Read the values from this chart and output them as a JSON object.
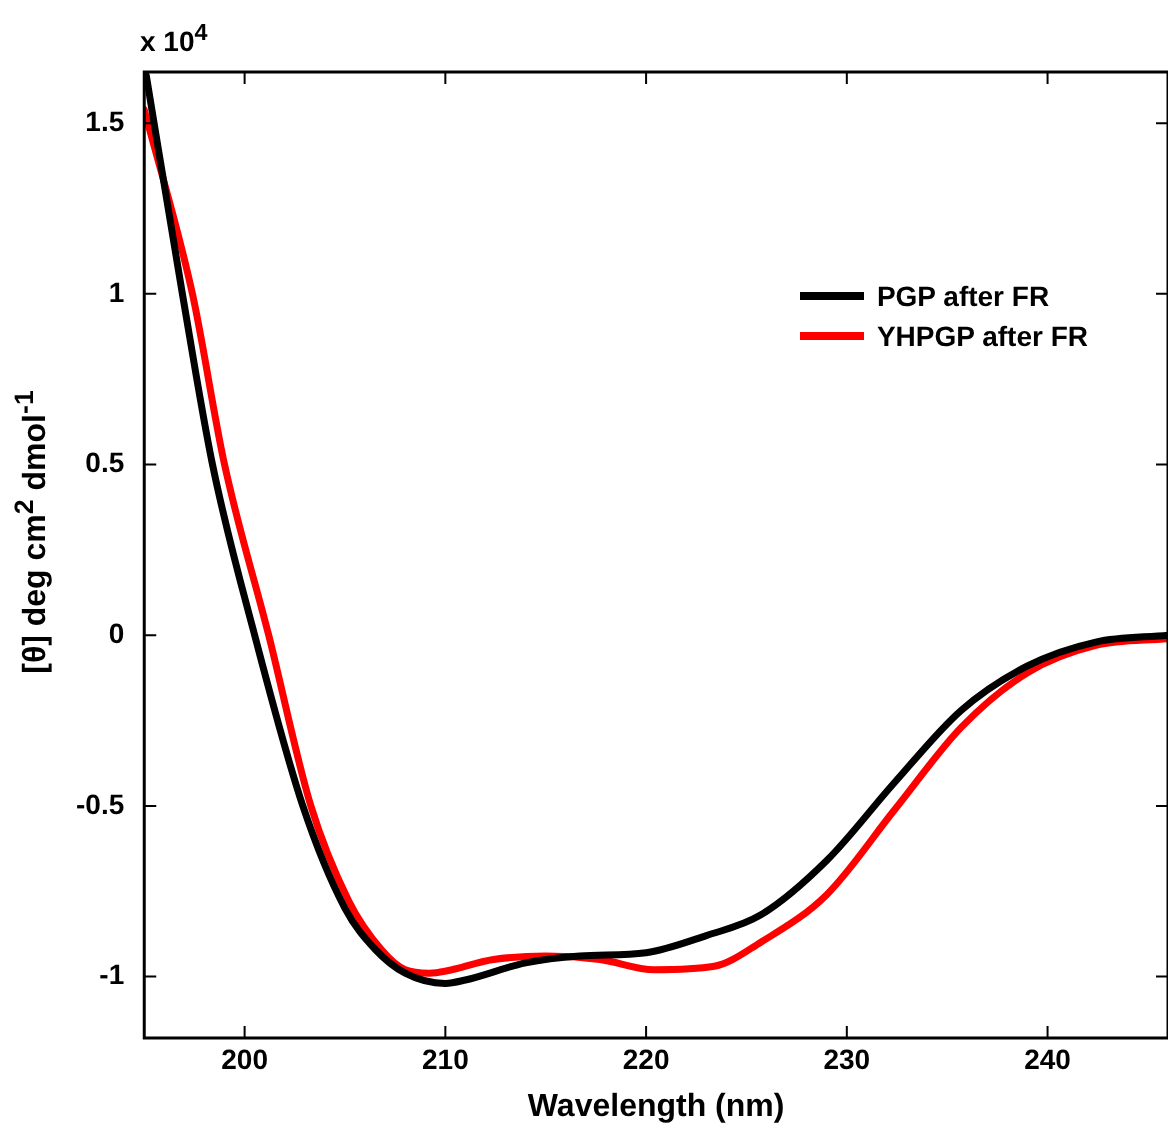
{
  "chart_data": {
    "type": "line",
    "xlabel": "Wavelength (nm)",
    "ylabel": "[θ] deg cm$^{2}$ dmol$^{-1}$",
    "annotations": [
      "x 10$^{4}$"
    ],
    "xlim": [
      195,
      246
    ],
    "xticks": [
      200,
      210,
      220,
      230,
      240
    ],
    "ylim": [
      -1.18,
      1.65
    ],
    "yticks": [
      -1,
      -0.5,
      0,
      0.5,
      1,
      1.5
    ],
    "legend": "top right",
    "grid": false,
    "marker": "none",
    "line_style": "solid",
    "series": [
      {
        "name": "PGP after FR",
        "color": "#000000",
        "x": [
          195.1,
          196.9,
          198.4,
          200.5,
          202.9,
          205.0,
          206.5,
          208,
          210,
          211,
          214,
          216.7,
          220,
          223,
          225.7,
          229,
          232.4,
          235.7,
          239,
          242.4,
          246
        ],
        "values": [
          1.64,
          1.0,
          0.5,
          0,
          -0.5,
          -0.8,
          -0.92,
          -0.99,
          -1.02,
          -1.01,
          -0.96,
          -0.94,
          -0.93,
          -0.88,
          -0.82,
          -0.66,
          -0.43,
          -0.22,
          -0.09,
          -0.02,
          0
        ]
      },
      {
        "name": "YHPGP after FR",
        "color": "#ff0000",
        "x": [
          195,
          197.4,
          199.0,
          201.2,
          203.3,
          205.2,
          206.8,
          208,
          209.2,
          212.4,
          215,
          217.7,
          220.4,
          223.4,
          225.7,
          229,
          232.4,
          235.7,
          239,
          242.4,
          246
        ],
        "values": [
          1.54,
          1.0,
          0.5,
          0,
          -0.5,
          -0.78,
          -0.92,
          -0.98,
          -0.99,
          -0.95,
          -0.94,
          -0.95,
          -0.98,
          -0.97,
          -0.9,
          -0.76,
          -0.51,
          -0.27,
          -0.11,
          -0.03,
          -0.01
        ]
      }
    ]
  }
}
